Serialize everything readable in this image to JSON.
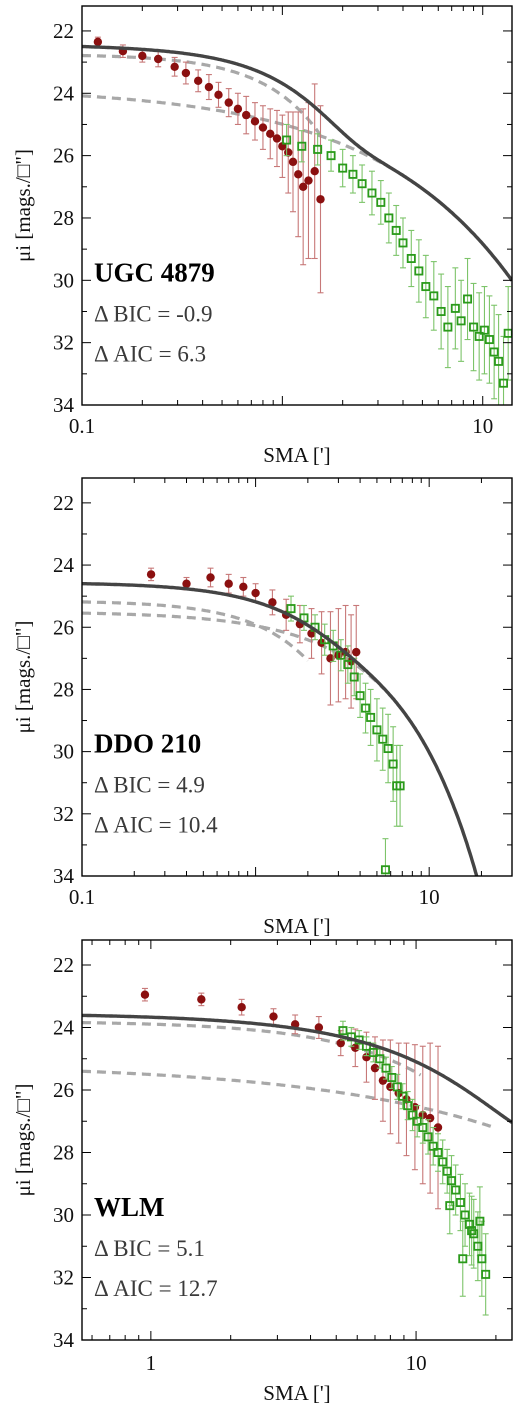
{
  "colors": {
    "inner_points": "#8b1010",
    "outer_points": "#2a9a1a",
    "outer_errorbars": "#7dc46a",
    "inner_errorbars": "#c77878",
    "total_model": "#444444",
    "component_models": "#a8a8a8"
  },
  "chart_data": [
    {
      "type": "scatter",
      "title": "UGC 4879",
      "stat_lines": [
        "Δ BIC = -0.9",
        "Δ AIC = 6.3"
      ],
      "xlabel": "SMA [']",
      "ylabel": "μi [mags./□\"]",
      "x_scale": "log",
      "xlim": [
        0.1,
        14
      ],
      "ylim": [
        34,
        21.2
      ],
      "x_ticks": [
        0.1,
        10
      ],
      "x_tick_labels": [
        "0.1",
        "10"
      ],
      "y_ticks": [
        22,
        24,
        26,
        28,
        30,
        32,
        34
      ],
      "y_inverted": true,
      "model": {
        "profile": "sersic",
        "components": [
          {
            "mu0": 22.75,
            "rc": 0.88,
            "n": 0.65
          },
          {
            "mu0": 23.8,
            "rc": 0.86,
            "n": 1.6
          }
        ],
        "xmax_components": [
          1.55,
          7.5
        ]
      },
      "series": [
        {
          "name": "",
          "marker": "circle",
          "color": "inner",
          "points": [
            [
              0.12,
              22.35,
              0.15
            ],
            [
              0.16,
              22.65,
              0.2
            ],
            [
              0.2,
              22.8,
              0.2
            ],
            [
              0.24,
              22.9,
              0.25
            ],
            [
              0.29,
              23.15,
              0.3
            ],
            [
              0.33,
              23.35,
              0.35
            ],
            [
              0.38,
              23.6,
              0.35
            ],
            [
              0.43,
              23.8,
              0.4
            ],
            [
              0.48,
              24.05,
              0.4
            ],
            [
              0.54,
              24.3,
              0.45
            ],
            [
              0.6,
              24.5,
              0.5
            ],
            [
              0.66,
              24.7,
              0.6
            ],
            [
              0.73,
              24.9,
              0.6
            ],
            [
              0.8,
              25.1,
              0.7
            ],
            [
              0.87,
              25.3,
              0.8
            ],
            [
              0.94,
              25.45,
              0.9
            ],
            [
              1.0,
              25.7,
              1.0
            ],
            [
              1.07,
              25.9,
              1.3
            ],
            [
              1.13,
              26.2,
              1.6
            ],
            [
              1.2,
              26.6,
              2.0
            ],
            [
              1.27,
              27.0,
              2.5
            ],
            [
              1.35,
              26.8,
              2.5
            ],
            [
              1.45,
              26.5,
              2.8
            ],
            [
              1.55,
              27.4,
              3.0
            ]
          ]
        },
        {
          "name": "",
          "marker": "square",
          "color": "outer",
          "points": [
            [
              1.05,
              25.5,
              0.5
            ],
            [
              1.25,
              25.7,
              0.5
            ],
            [
              1.5,
              25.8,
              0.5
            ],
            [
              1.75,
              26.0,
              0.5
            ],
            [
              2.0,
              26.4,
              0.6
            ],
            [
              2.25,
              26.6,
              0.6
            ],
            [
              2.5,
              26.9,
              0.6
            ],
            [
              2.8,
              27.2,
              0.7
            ],
            [
              3.1,
              27.5,
              0.7
            ],
            [
              3.4,
              28.0,
              0.8
            ],
            [
              3.7,
              28.4,
              0.8
            ],
            [
              4.0,
              28.8,
              0.8
            ],
            [
              4.4,
              29.3,
              0.9
            ],
            [
              4.8,
              29.7,
              1.0
            ],
            [
              5.2,
              30.2,
              1.0
            ],
            [
              5.7,
              30.5,
              1.1
            ],
            [
              6.2,
              31.0,
              1.2
            ],
            [
              6.7,
              31.5,
              1.3
            ],
            [
              7.3,
              30.9,
              1.3
            ],
            [
              7.8,
              31.3,
              1.3
            ],
            [
              8.4,
              30.6,
              1.3
            ],
            [
              9.0,
              31.5,
              1.4
            ],
            [
              9.6,
              31.8,
              1.4
            ],
            [
              10.2,
              31.6,
              1.4
            ],
            [
              10.8,
              31.9,
              1.4
            ],
            [
              11.4,
              32.3,
              1.5
            ],
            [
              12.0,
              32.6,
              1.5
            ],
            [
              12.7,
              33.3,
              1.5
            ],
            [
              13.4,
              31.7,
              1.5
            ]
          ]
        }
      ]
    },
    {
      "type": "scatter",
      "title": "DDO 210",
      "stat_lines": [
        "Δ BIC = 4.9",
        "Δ AIC = 10.4"
      ],
      "xlabel": "SMA [']",
      "ylabel": "μi [mags./□\"]",
      "x_scale": "log",
      "xlim": [
        0.1,
        30
      ],
      "ylim": [
        34,
        21.2
      ],
      "x_ticks": [
        0.1,
        10
      ],
      "x_tick_labels": [
        "0.1",
        "10"
      ],
      "y_ticks": [
        22,
        24,
        26,
        28,
        30,
        32,
        34
      ],
      "y_inverted": true,
      "model": {
        "profile": "sersic",
        "components": [
          {
            "mu0": 25.15,
            "rc": 1.3,
            "n": 0.75
          },
          {
            "mu0": 25.5,
            "rc": 2.4,
            "n": 1.0
          }
        ],
        "xmax_components": [
          2.0,
          5.5
        ]
      },
      "series": [
        {
          "name": "",
          "marker": "circle",
          "color": "inner",
          "points": [
            [
              0.25,
              24.3,
              0.2
            ],
            [
              0.4,
              24.6,
              0.2
            ],
            [
              0.55,
              24.4,
              0.3
            ],
            [
              0.7,
              24.6,
              0.3
            ],
            [
              0.85,
              24.7,
              0.3
            ],
            [
              1.0,
              24.9,
              0.3
            ],
            [
              1.25,
              25.2,
              0.4
            ],
            [
              1.5,
              25.6,
              0.5
            ],
            [
              1.8,
              25.9,
              0.6
            ],
            [
              2.1,
              26.2,
              0.8
            ],
            [
              2.4,
              26.5,
              1.0
            ],
            [
              2.7,
              27.0,
              1.5
            ],
            [
              3.0,
              26.9,
              1.5
            ],
            [
              3.3,
              26.8,
              1.5
            ],
            [
              3.55,
              27.1,
              1.5
            ],
            [
              3.8,
              26.8,
              1.5
            ]
          ]
        },
        {
          "name": "",
          "marker": "square",
          "color": "outer",
          "points": [
            [
              1.6,
              25.4,
              0.4
            ],
            [
              1.9,
              25.7,
              0.4
            ],
            [
              2.2,
              26.0,
              0.4
            ],
            [
              2.5,
              26.4,
              0.5
            ],
            [
              2.8,
              26.6,
              0.5
            ],
            [
              3.1,
              26.9,
              0.5
            ],
            [
              3.4,
              27.2,
              0.6
            ],
            [
              3.7,
              27.6,
              0.6
            ],
            [
              4.0,
              28.2,
              0.7
            ],
            [
              4.3,
              28.6,
              0.8
            ],
            [
              4.6,
              28.9,
              0.9
            ],
            [
              5.0,
              29.3,
              1.0
            ],
            [
              5.4,
              29.6,
              1.0
            ],
            [
              5.8,
              29.9,
              1.1
            ],
            [
              6.2,
              30.4,
              1.2
            ],
            [
              6.5,
              31.1,
              1.3
            ],
            [
              6.8,
              31.1,
              1.3
            ],
            [
              5.6,
              33.8,
              1.0
            ]
          ]
        }
      ]
    },
    {
      "type": "scatter",
      "title": "WLM",
      "stat_lines": [
        "Δ BIC = 5.1",
        "Δ AIC = 12.7"
      ],
      "xlabel": "SMA [']",
      "ylabel": "μi [mags./□\"]",
      "x_scale": "log",
      "xlim": [
        0.55,
        23
      ],
      "ylim": [
        34,
        21.2
      ],
      "x_ticks": [
        1,
        10
      ],
      "x_tick_labels": [
        "1",
        "10"
      ],
      "y_ticks": [
        22,
        24,
        26,
        28,
        30,
        32,
        34
      ],
      "y_inverted": true,
      "model": {
        "profile": "sersic",
        "components": [
          {
            "mu0": 23.8,
            "rc": 7.2,
            "n": 0.8
          },
          {
            "mu0": 25.15,
            "rc": 6.7,
            "n": 1.7
          }
        ],
        "xmax_components": [
          10.5,
          20
        ]
      },
      "series": [
        {
          "name": "",
          "marker": "circle",
          "color": "inner",
          "points": [
            [
              0.95,
              22.95,
              0.2
            ],
            [
              1.55,
              23.1,
              0.2
            ],
            [
              2.2,
              23.35,
              0.25
            ],
            [
              2.9,
              23.65,
              0.25
            ],
            [
              3.5,
              23.9,
              0.3
            ],
            [
              4.3,
              24.0,
              0.35
            ],
            [
              5.2,
              24.5,
              0.4
            ],
            [
              5.9,
              24.65,
              0.6
            ],
            [
              6.5,
              24.95,
              0.8
            ],
            [
              7.0,
              25.3,
              1.0
            ],
            [
              7.5,
              25.7,
              1.3
            ],
            [
              8.0,
              25.9,
              1.5
            ],
            [
              8.6,
              26.1,
              1.6
            ],
            [
              9.2,
              26.3,
              1.8
            ],
            [
              9.9,
              26.55,
              2.0
            ],
            [
              10.6,
              26.8,
              2.2
            ],
            [
              11.3,
              26.9,
              2.4
            ],
            [
              12.1,
              27.2,
              2.6
            ]
          ]
        },
        {
          "name": "",
          "marker": "square",
          "color": "outer",
          "points": [
            [
              5.3,
              24.1,
              0.3
            ],
            [
              5.7,
              24.3,
              0.3
            ],
            [
              6.1,
              24.4,
              0.3
            ],
            [
              6.5,
              24.6,
              0.3
            ],
            [
              6.9,
              24.8,
              0.3
            ],
            [
              7.3,
              25.0,
              0.3
            ],
            [
              7.7,
              25.3,
              0.35
            ],
            [
              8.1,
              25.6,
              0.35
            ],
            [
              8.5,
              25.9,
              0.4
            ],
            [
              8.9,
              26.2,
              0.4
            ],
            [
              9.3,
              26.5,
              0.45
            ],
            [
              9.7,
              26.8,
              0.5
            ],
            [
              10.1,
              27.0,
              0.5
            ],
            [
              10.6,
              27.2,
              0.5
            ],
            [
              11.1,
              27.5,
              0.55
            ],
            [
              11.6,
              27.8,
              0.6
            ],
            [
              12.1,
              28.0,
              0.6
            ],
            [
              12.6,
              28.3,
              0.7
            ],
            [
              13.1,
              28.6,
              0.7
            ],
            [
              13.6,
              28.9,
              0.8
            ],
            [
              14.1,
              29.2,
              0.8
            ],
            [
              14.7,
              29.6,
              0.9
            ],
            [
              15.3,
              30.0,
              1.0
            ],
            [
              15.9,
              30.3,
              1.0
            ],
            [
              16.5,
              30.6,
              1.1
            ],
            [
              17.1,
              31.0,
              1.1
            ],
            [
              17.7,
              31.4,
              1.2
            ],
            [
              18.3,
              31.9,
              1.3
            ],
            [
              15.0,
              31.4,
              1.2
            ],
            [
              16.2,
              30.5,
              1.1
            ],
            [
              17.4,
              30.2,
              1.1
            ],
            [
              13.4,
              29.7,
              0.9
            ]
          ]
        }
      ]
    }
  ]
}
